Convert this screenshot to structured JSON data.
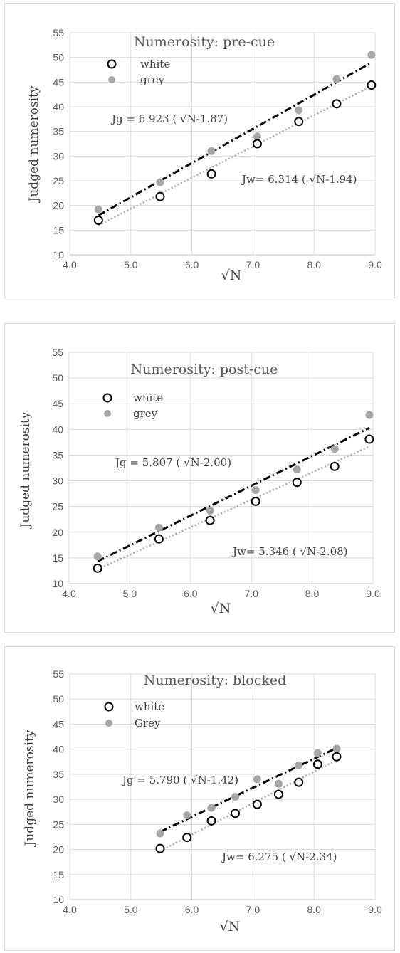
{
  "chart_data": [
    {
      "type": "scatter",
      "title": "Numerosity: pre-cue",
      "xlabel": "√N",
      "ylabel": "Judged numerosity",
      "xlim": [
        4.0,
        9.0
      ],
      "ylim": [
        10,
        55
      ],
      "xticks": [
        "4.0",
        "5.0",
        "6.0",
        "7.0",
        "8.0",
        "9.0"
      ],
      "yticks": [
        "10",
        "15",
        "20",
        "25",
        "30",
        "35",
        "40",
        "45",
        "50",
        "55"
      ],
      "grid": true,
      "legend_position": "top-left",
      "series": [
        {
          "name": "white",
          "marker": "open-circle",
          "color": "#000000",
          "x": [
            4.47,
            5.48,
            6.32,
            7.07,
            7.75,
            8.37,
            8.94
          ],
          "y": [
            17.0,
            21.8,
            26.4,
            32.5,
            37.0,
            40.6,
            44.4
          ]
        },
        {
          "name": "grey",
          "marker": "filled-circle",
          "color": "#a6a6a6",
          "x": [
            4.47,
            5.48,
            6.32,
            7.07,
            7.75,
            8.37,
            8.94
          ],
          "y": [
            19.2,
            24.7,
            31.0,
            34.0,
            39.3,
            45.6,
            50.5
          ]
        }
      ],
      "fits": [
        {
          "series": "grey",
          "style": "dash-dot",
          "color": "#000000",
          "slope": 6.923,
          "intercept": 1.87,
          "label": "Jg = 6.923 ( √N-1.87)"
        },
        {
          "series": "white",
          "style": "dotted",
          "color": "#a6a6a6",
          "slope": 6.314,
          "intercept": 1.94,
          "label": "Jw= 6.314 ( √N-1.94)"
        }
      ]
    },
    {
      "type": "scatter",
      "title": "Numerosity: post-cue",
      "xlabel": "√N",
      "ylabel": "Judged numerosity",
      "xlim": [
        4.0,
        9.0
      ],
      "ylim": [
        10,
        55
      ],
      "xticks": [
        "4.0",
        "5.0",
        "6.0",
        "7.0",
        "8.0",
        "9.0"
      ],
      "yticks": [
        "10",
        "15",
        "20",
        "25",
        "30",
        "35",
        "40",
        "45",
        "50",
        "55"
      ],
      "grid": true,
      "legend_position": "top-left",
      "series": [
        {
          "name": "white",
          "marker": "open-circle",
          "color": "#000000",
          "x": [
            4.47,
            5.48,
            6.32,
            7.07,
            7.75,
            8.37,
            8.94
          ],
          "y": [
            13.0,
            18.7,
            22.3,
            26.0,
            29.7,
            32.8,
            38.1
          ]
        },
        {
          "name": "grey",
          "marker": "filled-circle",
          "color": "#a6a6a6",
          "x": [
            4.47,
            5.48,
            6.32,
            7.07,
            7.75,
            8.37,
            8.94
          ],
          "y": [
            15.3,
            20.9,
            24.2,
            28.2,
            32.2,
            36.2,
            42.8
          ]
        }
      ],
      "fits": [
        {
          "series": "grey",
          "style": "dash-dot",
          "color": "#000000",
          "slope": 5.807,
          "intercept": 2.0,
          "label": "Jg = 5.807 ( √N-2.00)"
        },
        {
          "series": "white",
          "style": "dotted",
          "color": "#a6a6a6",
          "slope": 5.346,
          "intercept": 2.08,
          "label": "Jw= 5.346 ( √N-2.08)"
        }
      ]
    },
    {
      "type": "scatter",
      "title": "Numerosity: blocked",
      "xlabel": "√N",
      "ylabel": "Judged numerosity",
      "xlim": [
        4.0,
        9.0
      ],
      "ylim": [
        10,
        55
      ],
      "xticks": [
        "4.0",
        "5.0",
        "6.0",
        "7.0",
        "8.0",
        "9.0"
      ],
      "yticks": [
        "10",
        "15",
        "20",
        "25",
        "30",
        "35",
        "40",
        "45",
        "50",
        "55"
      ],
      "grid": true,
      "legend_position": "top-left",
      "series": [
        {
          "name": "white",
          "marker": "open-circle",
          "color": "#000000",
          "x": [
            5.48,
            5.92,
            6.32,
            6.71,
            7.07,
            7.42,
            7.75,
            8.06,
            8.37
          ],
          "y": [
            20.2,
            22.4,
            25.7,
            27.2,
            29.0,
            31.0,
            33.4,
            37.0,
            38.5
          ]
        },
        {
          "name": "Grey",
          "marker": "filled-circle",
          "color": "#a6a6a6",
          "x": [
            5.48,
            5.92,
            6.32,
            6.71,
            7.07,
            7.42,
            7.75,
            8.06,
            8.37
          ],
          "y": [
            23.2,
            26.8,
            28.3,
            30.5,
            34.0,
            33.1,
            36.8,
            39.2,
            40.1
          ]
        }
      ],
      "fits": [
        {
          "series": "Grey",
          "style": "dash-dot",
          "color": "#000000",
          "slope": 5.79,
          "intercept": 1.42,
          "label": "Jg = 5.790 ( √N-1.42)"
        },
        {
          "series": "white",
          "style": "dotted",
          "color": "#a6a6a6",
          "slope": 6.275,
          "intercept": 2.34,
          "label": "Jw= 6.275 ( √N-2.34)"
        }
      ]
    }
  ]
}
